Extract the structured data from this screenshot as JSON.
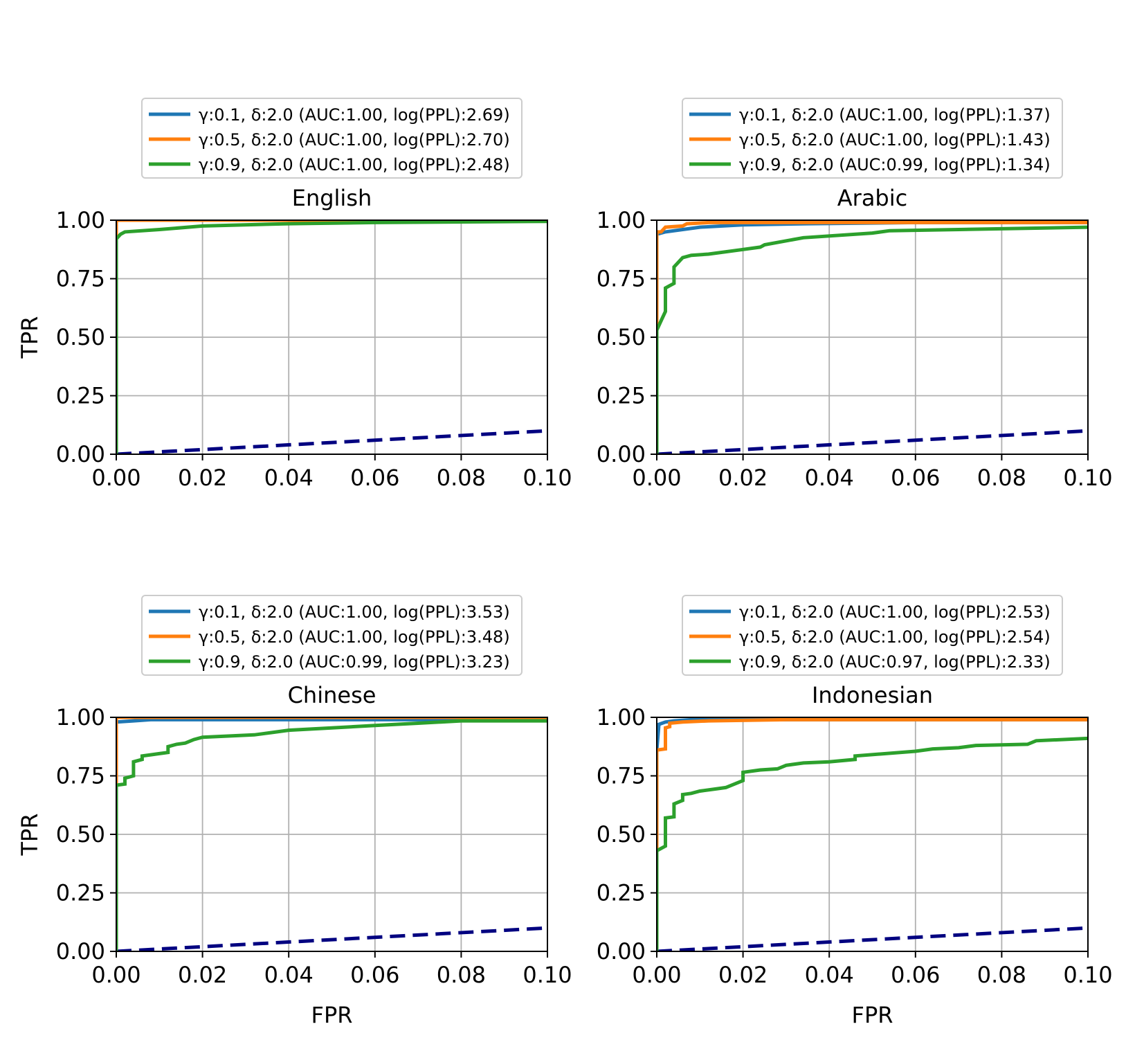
{
  "colors": {
    "series": [
      "#1f77b4",
      "#ff7f0e",
      "#2ca02c"
    ],
    "baseline": "#000080",
    "grid": "#b0b0b0"
  },
  "chart_data": [
    {
      "type": "line",
      "title": "English",
      "xlabel": "",
      "ylabel": "TPR",
      "xlim": [
        0,
        0.1
      ],
      "ylim": [
        0,
        1
      ],
      "xticks": [
        "0.00",
        "0.02",
        "0.04",
        "0.06",
        "0.08",
        "0.10"
      ],
      "yticks": [
        "0.00",
        "0.25",
        "0.50",
        "0.75",
        "1.00"
      ],
      "grid": true,
      "legend_position": "above",
      "series": [
        {
          "name": "γ:0.1, δ:2.0 (AUC:1.00, log(PPL):2.69)",
          "points": [
            [
              0,
              0
            ],
            [
              0,
              1
            ],
            [
              0.1,
              1
            ]
          ]
        },
        {
          "name": "γ:0.5, δ:2.0 (AUC:1.00, log(PPL):2.70)",
          "points": [
            [
              0,
              0
            ],
            [
              0,
              1
            ],
            [
              0.1,
              1
            ]
          ]
        },
        {
          "name": "γ:0.9, δ:2.0 (AUC:1.00, log(PPL):2.48)",
          "points": [
            [
              0,
              0
            ],
            [
              0,
              0.92
            ],
            [
              0.001,
              0.94
            ],
            [
              0.002,
              0.95
            ],
            [
              0.01,
              0.96
            ],
            [
              0.02,
              0.975
            ],
            [
              0.04,
              0.985
            ],
            [
              0.06,
              0.99
            ],
            [
              0.1,
              0.995
            ]
          ]
        }
      ],
      "baseline": {
        "points": [
          [
            0,
            0
          ],
          [
            0.1,
            0.1
          ]
        ],
        "style": "dashed"
      }
    },
    {
      "type": "line",
      "title": "Arabic",
      "xlabel": "",
      "ylabel": "",
      "xlim": [
        0,
        0.1
      ],
      "ylim": [
        0,
        1
      ],
      "xticks": [
        "0.00",
        "0.02",
        "0.04",
        "0.06",
        "0.08",
        "0.10"
      ],
      "yticks": [
        "0.00",
        "0.25",
        "0.50",
        "0.75",
        "1.00"
      ],
      "grid": true,
      "legend_position": "above",
      "series": [
        {
          "name": "γ:0.1, δ:2.0 (AUC:1.00, log(PPL):1.37)",
          "points": [
            [
              0,
              0
            ],
            [
              0,
              0.94
            ],
            [
              0.002,
              0.95
            ],
            [
              0.006,
              0.96
            ],
            [
              0.01,
              0.97
            ],
            [
              0.02,
              0.98
            ],
            [
              0.035,
              0.985
            ],
            [
              0.06,
              0.99
            ],
            [
              0.1,
              0.99
            ]
          ]
        },
        {
          "name": "γ:0.5, δ:2.0 (AUC:1.00, log(PPL):1.43)",
          "points": [
            [
              0,
              0
            ],
            [
              0,
              0.95
            ],
            [
              0.001,
              0.95
            ],
            [
              0.002,
              0.97
            ],
            [
              0.006,
              0.975
            ],
            [
              0.007,
              0.985
            ],
            [
              0.012,
              0.99
            ],
            [
              0.1,
              0.99
            ]
          ]
        },
        {
          "name": "γ:0.9, δ:2.0 (AUC:0.99, log(PPL):1.34)",
          "points": [
            [
              0,
              0
            ],
            [
              0,
              0.53
            ],
            [
              0.001,
              0.57
            ],
            [
              0.002,
              0.61
            ],
            [
              0.002,
              0.71
            ],
            [
              0.003,
              0.72
            ],
            [
              0.004,
              0.73
            ],
            [
              0.004,
              0.8
            ],
            [
              0.006,
              0.84
            ],
            [
              0.008,
              0.85
            ],
            [
              0.012,
              0.855
            ],
            [
              0.02,
              0.875
            ],
            [
              0.024,
              0.885
            ],
            [
              0.025,
              0.895
            ],
            [
              0.034,
              0.925
            ],
            [
              0.05,
              0.945
            ],
            [
              0.054,
              0.955
            ],
            [
              0.07,
              0.96
            ],
            [
              0.1,
              0.97
            ]
          ]
        }
      ],
      "baseline": {
        "points": [
          [
            0,
            0
          ],
          [
            0.1,
            0.1
          ]
        ],
        "style": "dashed"
      }
    },
    {
      "type": "line",
      "title": "Chinese",
      "xlabel": "FPR",
      "ylabel": "TPR",
      "xlim": [
        0,
        0.1
      ],
      "ylim": [
        0,
        1
      ],
      "xticks": [
        "0.00",
        "0.02",
        "0.04",
        "0.06",
        "0.08",
        "0.10"
      ],
      "yticks": [
        "0.00",
        "0.25",
        "0.50",
        "0.75",
        "1.00"
      ],
      "grid": true,
      "legend_position": "above",
      "series": [
        {
          "name": "γ:0.1, δ:2.0 (AUC:1.00, log(PPL):3.53)",
          "points": [
            [
              0,
              0
            ],
            [
              0,
              0.98
            ],
            [
              0.004,
              0.985
            ],
            [
              0.008,
              0.99
            ],
            [
              0.1,
              0.99
            ]
          ]
        },
        {
          "name": "γ:0.5, δ:2.0 (AUC:1.00, log(PPL):3.48)",
          "points": [
            [
              0,
              0
            ],
            [
              0,
              1
            ],
            [
              0.1,
              1
            ]
          ]
        },
        {
          "name": "γ:0.9, δ:2.0 (AUC:0.99, log(PPL):3.23)",
          "points": [
            [
              0,
              0
            ],
            [
              0,
              0.71
            ],
            [
              0.002,
              0.715
            ],
            [
              0.002,
              0.74
            ],
            [
              0.004,
              0.75
            ],
            [
              0.004,
              0.81
            ],
            [
              0.006,
              0.82
            ],
            [
              0.006,
              0.835
            ],
            [
              0.008,
              0.84
            ],
            [
              0.01,
              0.845
            ],
            [
              0.012,
              0.85
            ],
            [
              0.012,
              0.875
            ],
            [
              0.014,
              0.885
            ],
            [
              0.016,
              0.89
            ],
            [
              0.018,
              0.905
            ],
            [
              0.02,
              0.915
            ],
            [
              0.026,
              0.92
            ],
            [
              0.032,
              0.925
            ],
            [
              0.036,
              0.935
            ],
            [
              0.04,
              0.945
            ],
            [
              0.05,
              0.955
            ],
            [
              0.06,
              0.965
            ],
            [
              0.07,
              0.975
            ],
            [
              0.08,
              0.985
            ],
            [
              0.1,
              0.985
            ]
          ]
        }
      ],
      "baseline": {
        "points": [
          [
            0,
            0
          ],
          [
            0.1,
            0.1
          ]
        ],
        "style": "dashed"
      }
    },
    {
      "type": "line",
      "title": "Indonesian",
      "xlabel": "FPR",
      "ylabel": "",
      "xlim": [
        0,
        0.1
      ],
      "ylim": [
        0,
        1
      ],
      "xticks": [
        "0.00",
        "0.02",
        "0.04",
        "0.06",
        "0.08",
        "0.10"
      ],
      "yticks": [
        "0.00",
        "0.25",
        "0.50",
        "0.75",
        "1.00"
      ],
      "grid": true,
      "legend_position": "above",
      "series": [
        {
          "name": "γ:0.1, δ:2.0 (AUC:1.00, log(PPL):2.53)",
          "points": [
            [
              0,
              0
            ],
            [
              0,
              0.86
            ],
            [
              0.0005,
              0.97
            ],
            [
              0.002,
              0.98
            ],
            [
              0.004,
              0.985
            ],
            [
              0.008,
              0.99
            ],
            [
              0.1,
              0.99
            ]
          ]
        },
        {
          "name": "γ:0.5, δ:2.0 (AUC:1.00, log(PPL):2.54)",
          "points": [
            [
              0,
              0
            ],
            [
              0,
              0.86
            ],
            [
              0.002,
              0.865
            ],
            [
              0.002,
              0.955
            ],
            [
              0.003,
              0.96
            ],
            [
              0.003,
              0.975
            ],
            [
              0.006,
              0.98
            ],
            [
              0.012,
              0.985
            ],
            [
              0.03,
              0.99
            ],
            [
              0.1,
              0.99
            ]
          ]
        },
        {
          "name": "γ:0.9, δ:2.0 (AUC:0.97, log(PPL):2.33)",
          "points": [
            [
              0,
              0
            ],
            [
              0,
              0.43
            ],
            [
              0.001,
              0.44
            ],
            [
              0.002,
              0.45
            ],
            [
              0.002,
              0.57
            ],
            [
              0.004,
              0.575
            ],
            [
              0.004,
              0.63
            ],
            [
              0.006,
              0.645
            ],
            [
              0.006,
              0.67
            ],
            [
              0.008,
              0.675
            ],
            [
              0.01,
              0.685
            ],
            [
              0.014,
              0.695
            ],
            [
              0.016,
              0.7
            ],
            [
              0.02,
              0.73
            ],
            [
              0.02,
              0.765
            ],
            [
              0.024,
              0.775
            ],
            [
              0.028,
              0.78
            ],
            [
              0.03,
              0.795
            ],
            [
              0.034,
              0.805
            ],
            [
              0.04,
              0.81
            ],
            [
              0.046,
              0.82
            ],
            [
              0.046,
              0.835
            ],
            [
              0.06,
              0.855
            ],
            [
              0.064,
              0.865
            ],
            [
              0.07,
              0.87
            ],
            [
              0.074,
              0.88
            ],
            [
              0.086,
              0.885
            ],
            [
              0.088,
              0.9
            ],
            [
              0.1,
              0.91
            ]
          ]
        }
      ],
      "baseline": {
        "points": [
          [
            0,
            0
          ],
          [
            0.1,
            0.1
          ]
        ],
        "style": "dashed"
      }
    }
  ]
}
